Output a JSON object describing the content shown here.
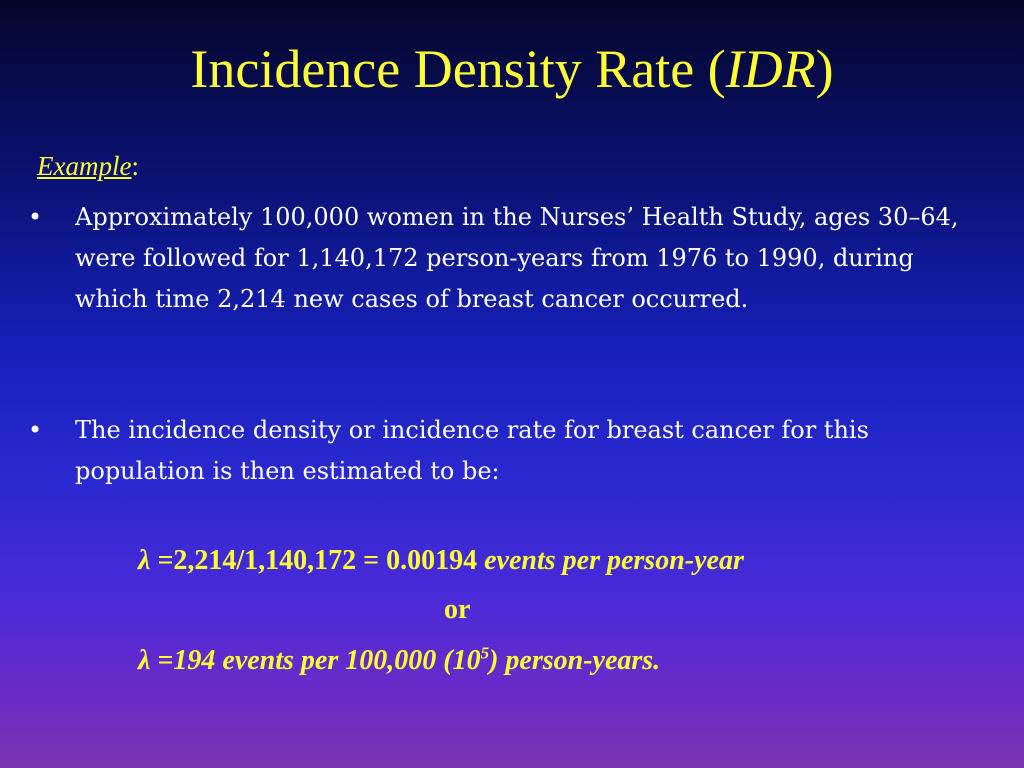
{
  "title": {
    "main": "Incidence Density Rate (",
    "abbr": "IDR",
    "close": ")"
  },
  "example": {
    "label": "Example",
    "colon": ":"
  },
  "bullets": [
    {
      "symbol": "•",
      "text": "Approximately 100,000 women in the Nurses’ Health Study, ages 30–64, were followed for 1,140,172 person-years from 1976 to 1990, during which time 2,214 new cases of breast cancer occurred."
    },
    {
      "symbol": "•",
      "text": "The incidence density or incidence rate for breast cancer for this population is then estimated to be:"
    }
  ],
  "formula1": {
    "lhs": "λ =",
    "calc": "2,214/1,140,172 = 0.00194",
    "units": " events per person-year"
  },
  "or": "or",
  "formula2": {
    "lhs": "λ =",
    "value": "194",
    "units_a": " events per 100,000 (10",
    "exponent": "5",
    "units_b": ") person-years."
  },
  "colors": {
    "accent": "#ffff33",
    "body_text": "#ffffff"
  }
}
